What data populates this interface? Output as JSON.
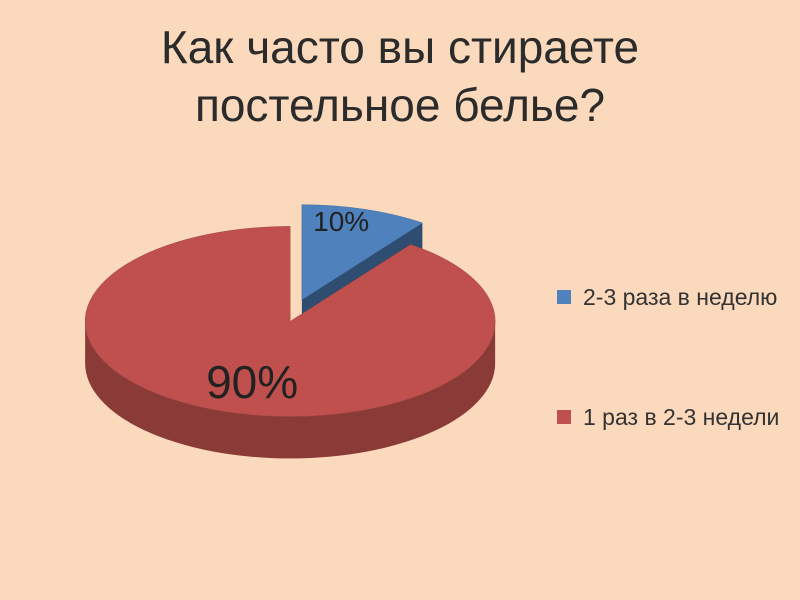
{
  "chart_data": {
    "type": "pie",
    "title": "Как часто вы стираете постельное белье?",
    "categories": [
      "2-3 раза в неделю",
      "1 раз в 2-3 недели"
    ],
    "values": [
      10,
      90
    ],
    "value_labels": [
      "10%",
      "90%"
    ],
    "colors": [
      "#4f81bd",
      "#c0504d"
    ],
    "legend": "right"
  }
}
